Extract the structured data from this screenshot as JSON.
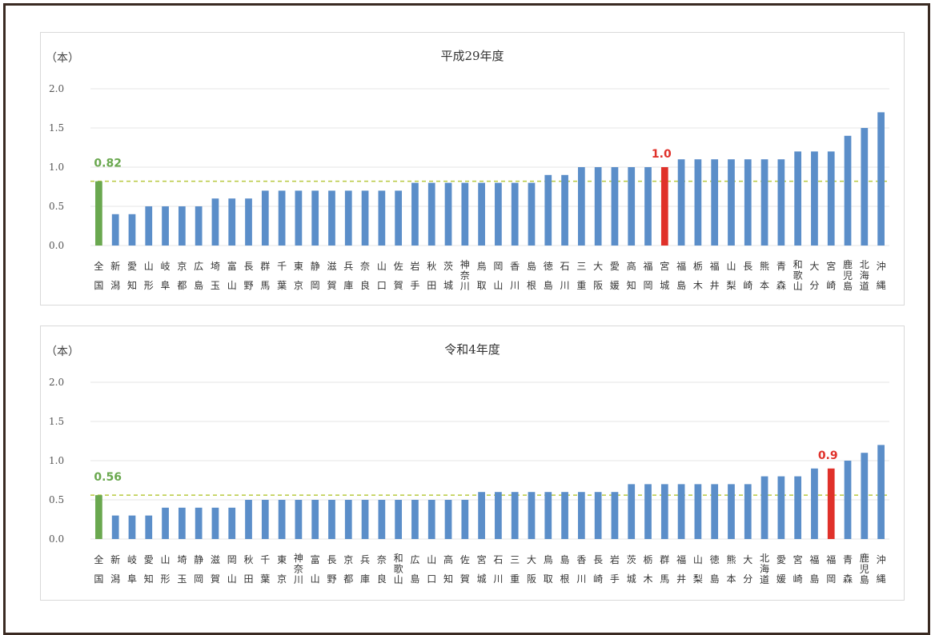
{
  "colors": {
    "bar": "#5b8ec9",
    "national_bar": "#6aa84f",
    "highlight_bar": "#e0312a",
    "average_line": "#b7c93f",
    "grid": "#e6e6e6"
  },
  "chart_data": [
    {
      "type": "bar",
      "title": "平成29年度",
      "unit": "（本）",
      "ylim": [
        0,
        2
      ],
      "yticks": [
        "2.0",
        "1.5",
        "1.0",
        "0.5",
        "0.0"
      ],
      "grid": true,
      "reference_line": {
        "value": 0.82,
        "label": "0.82",
        "style": "dashed"
      },
      "highlight": {
        "category_index": 34,
        "label": "1.0"
      },
      "categories": [
        [
          "全",
          "国"
        ],
        [
          "新",
          "潟"
        ],
        [
          "愛",
          "知"
        ],
        [
          "山",
          "形"
        ],
        [
          "岐",
          "阜"
        ],
        [
          "京",
          "都"
        ],
        [
          "広",
          "島"
        ],
        [
          "埼",
          "玉"
        ],
        [
          "富",
          "山"
        ],
        [
          "長",
          "野"
        ],
        [
          "群",
          "馬"
        ],
        [
          "千",
          "葉"
        ],
        [
          "東",
          "京"
        ],
        [
          "静",
          "岡"
        ],
        [
          "滋",
          "賀"
        ],
        [
          "兵",
          "庫"
        ],
        [
          "奈",
          "良"
        ],
        [
          "山",
          "口"
        ],
        [
          "佐",
          "賀"
        ],
        [
          "岩",
          "手"
        ],
        [
          "秋",
          "田"
        ],
        [
          "茨",
          "城"
        ],
        [
          "神",
          "奈",
          "川"
        ],
        [
          "鳥",
          "取"
        ],
        [
          "岡",
          "山"
        ],
        [
          "香",
          "川"
        ],
        [
          "島",
          "根"
        ],
        [
          "徳",
          "島"
        ],
        [
          "石",
          "川"
        ],
        [
          "三",
          "重"
        ],
        [
          "大",
          "阪"
        ],
        [
          "愛",
          "媛"
        ],
        [
          "高",
          "知"
        ],
        [
          "福",
          "岡"
        ],
        [
          "宮",
          "城"
        ],
        [
          "福",
          "島"
        ],
        [
          "栃",
          "木"
        ],
        [
          "福",
          "井"
        ],
        [
          "山",
          "梨"
        ],
        [
          "長",
          "崎"
        ],
        [
          "熊",
          "本"
        ],
        [
          "青",
          "森"
        ],
        [
          "和",
          "歌",
          "山"
        ],
        [
          "大",
          "分"
        ],
        [
          "宮",
          "崎"
        ],
        [
          "鹿",
          "児",
          "島"
        ],
        [
          "北",
          "海",
          "道"
        ],
        [
          "沖",
          "縄"
        ]
      ],
      "values": [
        0.82,
        0.4,
        0.4,
        0.5,
        0.5,
        0.5,
        0.5,
        0.6,
        0.6,
        0.6,
        0.7,
        0.7,
        0.7,
        0.7,
        0.7,
        0.7,
        0.7,
        0.7,
        0.7,
        0.8,
        0.8,
        0.8,
        0.8,
        0.8,
        0.8,
        0.8,
        0.8,
        0.9,
        0.9,
        1.0,
        1.0,
        1.0,
        1.0,
        1.0,
        1.0,
        1.1,
        1.1,
        1.1,
        1.1,
        1.1,
        1.1,
        1.1,
        1.2,
        1.2,
        1.2,
        1.4,
        1.5,
        1.7
      ]
    },
    {
      "type": "bar",
      "title": "令和4年度",
      "unit": "（本）",
      "ylim": [
        0,
        2
      ],
      "yticks": [
        "2.0",
        "1.5",
        "1.0",
        "0.5",
        "0.0"
      ],
      "grid": true,
      "reference_line": {
        "value": 0.56,
        "label": "0.56",
        "style": "dashed"
      },
      "highlight": {
        "category_index": 44,
        "label": "0.9"
      },
      "categories": [
        [
          "全",
          "国"
        ],
        [
          "新",
          "潟"
        ],
        [
          "岐",
          "阜"
        ],
        [
          "愛",
          "知"
        ],
        [
          "山",
          "形"
        ],
        [
          "埼",
          "玉"
        ],
        [
          "静",
          "岡"
        ],
        [
          "滋",
          "賀"
        ],
        [
          "岡",
          "山"
        ],
        [
          "秋",
          "田"
        ],
        [
          "千",
          "葉"
        ],
        [
          "東",
          "京"
        ],
        [
          "神",
          "奈",
          "川"
        ],
        [
          "富",
          "山"
        ],
        [
          "長",
          "野"
        ],
        [
          "京",
          "都"
        ],
        [
          "兵",
          "庫"
        ],
        [
          "奈",
          "良"
        ],
        [
          "和",
          "歌",
          "山"
        ],
        [
          "広",
          "島"
        ],
        [
          "山",
          "口"
        ],
        [
          "高",
          "知"
        ],
        [
          "佐",
          "賀"
        ],
        [
          "宮",
          "城"
        ],
        [
          "石",
          "川"
        ],
        [
          "三",
          "重"
        ],
        [
          "大",
          "阪"
        ],
        [
          "鳥",
          "取"
        ],
        [
          "島",
          "根"
        ],
        [
          "香",
          "川"
        ],
        [
          "長",
          "崎"
        ],
        [
          "岩",
          "手"
        ],
        [
          "茨",
          "城"
        ],
        [
          "栃",
          "木"
        ],
        [
          "群",
          "馬"
        ],
        [
          "福",
          "井"
        ],
        [
          "山",
          "梨"
        ],
        [
          "徳",
          "島"
        ],
        [
          "熊",
          "本"
        ],
        [
          "大",
          "分"
        ],
        [
          "北",
          "海",
          "道"
        ],
        [
          "愛",
          "媛"
        ],
        [
          "宮",
          "崎"
        ],
        [
          "福",
          "島"
        ],
        [
          "福",
          "岡"
        ],
        [
          "青",
          "森"
        ],
        [
          "鹿",
          "児",
          "島"
        ],
        [
          "沖",
          "縄"
        ]
      ],
      "values": [
        0.56,
        0.3,
        0.3,
        0.3,
        0.4,
        0.4,
        0.4,
        0.4,
        0.4,
        0.5,
        0.5,
        0.5,
        0.5,
        0.5,
        0.5,
        0.5,
        0.5,
        0.5,
        0.5,
        0.5,
        0.5,
        0.5,
        0.5,
        0.6,
        0.6,
        0.6,
        0.6,
        0.6,
        0.6,
        0.6,
        0.6,
        0.6,
        0.7,
        0.7,
        0.7,
        0.7,
        0.7,
        0.7,
        0.7,
        0.7,
        0.8,
        0.8,
        0.8,
        0.9,
        0.9,
        1.0,
        1.1,
        1.2
      ]
    }
  ]
}
